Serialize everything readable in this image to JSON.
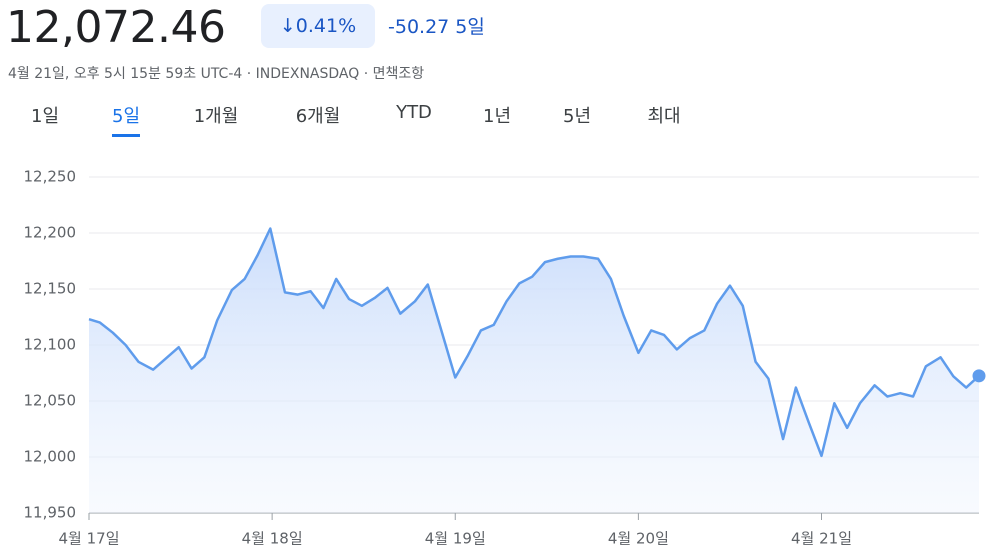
{
  "header": {
    "price": "12,072.46",
    "change_percent": "0.41%",
    "change": "-50.27",
    "period": "5일",
    "subtitle": "4월 21일, 오후 5시 15분 59초 UTC-4 · INDEXNASDAQ · 면책조항"
  },
  "tabs": [
    "1일",
    "5일",
    "1개월",
    "6개월",
    "YTD",
    "1년",
    "5년",
    "최대"
  ],
  "selected_tab": 1,
  "chart_data": {
    "type": "line",
    "x": [
      0,
      0.06,
      0.13,
      0.2,
      0.27,
      0.35,
      0.42,
      0.49,
      0.56,
      0.63,
      0.7,
      0.78,
      0.85,
      0.92,
      0.99,
      1.07,
      1.14,
      1.21,
      1.28,
      1.35,
      1.42,
      1.49,
      1.56,
      1.63,
      1.7,
      1.78,
      1.85,
      2.0,
      2.07,
      2.14,
      2.21,
      2.28,
      2.35,
      2.42,
      2.49,
      2.56,
      2.63,
      2.7,
      2.78,
      2.85,
      2.92,
      3.0,
      3.07,
      3.14,
      3.21,
      3.28,
      3.36,
      3.43,
      3.5,
      3.57,
      3.64,
      3.71,
      3.79,
      3.86,
      3.93,
      4.0,
      4.07,
      4.14,
      4.21,
      4.29,
      4.36,
      4.43,
      4.5,
      4.57,
      4.65,
      4.72,
      4.79,
      4.86
    ],
    "series": [
      {
        "color": "#5f9cec",
        "values": [
          12123,
          12120,
          12111,
          12100,
          12085,
          12078,
          12088,
          12098,
          12079,
          12089,
          12122,
          12149,
          12159,
          12180,
          12204,
          12147,
          12145,
          12148,
          12133,
          12159,
          12141,
          12135,
          12142,
          12151,
          12128,
          12139,
          12154,
          12071,
          12091,
          12113,
          12118,
          12139,
          12155,
          12161,
          12174,
          12177,
          12179,
          12179,
          12177,
          12159,
          12126,
          12093,
          12113,
          12109,
          12096,
          12106,
          12113,
          12137,
          12153,
          12135,
          12085,
          12070,
          12016,
          12062,
          12031,
          12001,
          12048,
          12026,
          12048,
          12064,
          12054,
          12057,
          12054,
          12081,
          12089,
          12072,
          12062,
          12072.46
        ]
      }
    ],
    "xlim": [
      0,
      4.86
    ],
    "xticks": [
      {
        "value": 0,
        "label": "4월 17일"
      },
      {
        "value": 1,
        "label": "4월 18일"
      },
      {
        "value": 2,
        "label": "4월 19일"
      },
      {
        "value": 3,
        "label": "4월 20일"
      },
      {
        "value": 4,
        "label": "4월 21일"
      }
    ],
    "ylim": [
      11950,
      12250
    ],
    "yticks": [
      {
        "value": 11950,
        "label": "11,950"
      },
      {
        "value": 12000,
        "label": "12,000"
      },
      {
        "value": 12050,
        "label": "12,050"
      },
      {
        "value": 12100,
        "label": "12,100"
      },
      {
        "value": 12150,
        "label": "12,150"
      },
      {
        "value": 12200,
        "label": "12,200"
      },
      {
        "value": 12250,
        "label": "12,250"
      }
    ],
    "grid": true
  }
}
